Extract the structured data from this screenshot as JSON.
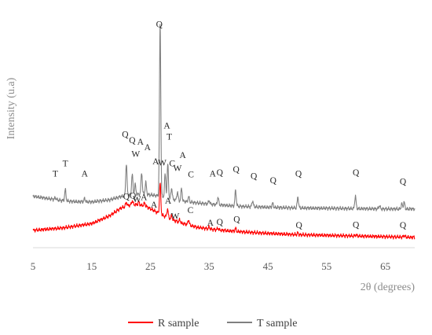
{
  "chart_data": {
    "type": "line",
    "xlabel": "2θ (degrees)",
    "ylabel": "Intensity (u.a)",
    "xlim": [
      5,
      70
    ],
    "x_ticks": [
      5,
      15,
      25,
      35,
      45,
      55,
      65
    ],
    "y_ticks_shown": false,
    "grid": false,
    "legend_position": "bottom",
    "series": [
      {
        "name": "R sample",
        "color": "#ff0000",
        "baseline": [
          [
            5,
            5.2
          ],
          [
            10,
            5.9
          ],
          [
            15,
            7.2
          ],
          [
            18,
            9.5
          ],
          [
            20,
            11.9
          ],
          [
            22,
            13.0
          ],
          [
            24,
            12.6
          ],
          [
            25.5,
            11.2
          ],
          [
            27,
            9.7
          ],
          [
            30,
            7.5
          ],
          [
            33,
            6.1
          ],
          [
            36,
            5.4
          ],
          [
            40,
            4.8
          ],
          [
            45,
            4.3
          ],
          [
            50,
            3.9
          ],
          [
            55,
            3.7
          ],
          [
            60,
            3.5
          ],
          [
            65,
            3.3
          ],
          [
            70,
            3.1
          ]
        ],
        "peaks": [
          [
            20.9,
            1.3
          ],
          [
            21.9,
            1.1
          ],
          [
            23.0,
            0.9
          ],
          [
            24.0,
            0.8
          ],
          [
            26.65,
            9.2
          ],
          [
            27.9,
            2.6
          ],
          [
            28.6,
            1.0
          ],
          [
            30.0,
            0.9
          ],
          [
            31.5,
            1.6
          ],
          [
            35.0,
            0.5
          ],
          [
            36.5,
            0.5
          ],
          [
            39.5,
            0.9
          ],
          [
            50.1,
            0.5
          ],
          [
            60.0,
            0.4
          ],
          [
            68.2,
            0.5
          ]
        ]
      },
      {
        "name": "T sample",
        "color": "#808080",
        "baseline": [
          [
            5,
            15.4
          ],
          [
            8,
            14.6
          ],
          [
            10,
            14.1
          ],
          [
            12,
            13.8
          ],
          [
            15,
            13.7
          ],
          [
            18,
            14.3
          ],
          [
            20,
            15.3
          ],
          [
            22,
            15.9
          ],
          [
            24,
            16.0
          ],
          [
            26,
            15.6
          ],
          [
            28,
            14.7
          ],
          [
            30,
            14.0
          ],
          [
            33,
            13.4
          ],
          [
            36,
            12.9
          ],
          [
            40,
            12.4
          ],
          [
            45,
            12.1
          ],
          [
            50,
            11.9
          ],
          [
            55,
            11.8
          ],
          [
            60,
            11.7
          ],
          [
            65,
            11.6
          ],
          [
            70,
            11.6
          ]
        ],
        "peaks": [
          [
            8.8,
            0.6
          ],
          [
            10.5,
            3.3
          ],
          [
            13.8,
            1.0
          ],
          [
            20.9,
            9.6
          ],
          [
            21.9,
            6.1
          ],
          [
            22.4,
            3.0
          ],
          [
            23.5,
            6.5
          ],
          [
            24.2,
            3.6
          ],
          [
            26.65,
            51.5
          ],
          [
            27.5,
            7.0
          ],
          [
            27.95,
            10.2
          ],
          [
            28.6,
            3.4
          ],
          [
            29.6,
            2.6
          ],
          [
            30.3,
            3.7
          ],
          [
            31.5,
            1.6
          ],
          [
            35.0,
            1.1
          ],
          [
            36.5,
            2.3
          ],
          [
            39.5,
            4.7
          ],
          [
            42.4,
            1.8
          ],
          [
            45.8,
            1.2
          ],
          [
            50.1,
            3.3
          ],
          [
            59.9,
            3.8
          ],
          [
            64.0,
            1.0
          ],
          [
            67.8,
            1.6
          ],
          [
            68.2,
            2.1
          ]
        ]
      }
    ],
    "annotations": [
      {
        "text": "Q",
        "x": 26.5,
        "y": 66.0
      },
      {
        "text": "A",
        "x": 27.8,
        "y": 35.6
      },
      {
        "text": "T",
        "x": 28.2,
        "y": 32.3
      },
      {
        "text": "Q",
        "x": 20.7,
        "y": 33.1
      },
      {
        "text": "Q",
        "x": 21.9,
        "y": 31.3
      },
      {
        "text": "A",
        "x": 23.3,
        "y": 30.8
      },
      {
        "text": "A",
        "x": 24.5,
        "y": 29.2
      },
      {
        "text": "W",
        "x": 22.5,
        "y": 27.2
      },
      {
        "text": "A",
        "x": 25.9,
        "y": 24.9
      },
      {
        "text": "W",
        "x": 27.0,
        "y": 24.6
      },
      {
        "text": "C",
        "x": 28.7,
        "y": 24.3
      },
      {
        "text": "W",
        "x": 29.6,
        "y": 23.0
      },
      {
        "text": "A",
        "x": 30.5,
        "y": 26.8
      },
      {
        "text": "C",
        "x": 31.9,
        "y": 21.1
      },
      {
        "text": "T",
        "x": 8.8,
        "y": 21.3
      },
      {
        "text": "T",
        "x": 10.5,
        "y": 24.3
      },
      {
        "text": "A",
        "x": 13.8,
        "y": 21.3
      },
      {
        "text": "A",
        "x": 35.6,
        "y": 21.3
      },
      {
        "text": "Q",
        "x": 36.8,
        "y": 21.7
      },
      {
        "text": "Q",
        "x": 39.6,
        "y": 22.6
      },
      {
        "text": "Q",
        "x": 42.6,
        "y": 20.6
      },
      {
        "text": "Q",
        "x": 45.9,
        "y": 19.3
      },
      {
        "text": "Q",
        "x": 50.2,
        "y": 21.3
      },
      {
        "text": "Q",
        "x": 60.0,
        "y": 21.7
      },
      {
        "text": "Q",
        "x": 68.0,
        "y": 19.0
      },
      {
        "text": "Q",
        "x": 20.9,
        "y": 14.5
      },
      {
        "text": "Q",
        "x": 22.0,
        "y": 14.7
      },
      {
        "text": "W",
        "x": 22.7,
        "y": 13.7
      },
      {
        "text": "A",
        "x": 23.9,
        "y": 14.2
      },
      {
        "text": "A",
        "x": 25.6,
        "y": 12.0
      },
      {
        "text": "A",
        "x": 28.0,
        "y": 13.2
      },
      {
        "text": "W",
        "x": 29.2,
        "y": 8.6
      },
      {
        "text": "C",
        "x": 31.8,
        "y": 10.3
      },
      {
        "text": "A",
        "x": 35.2,
        "y": 6.6
      },
      {
        "text": "Q",
        "x": 36.8,
        "y": 6.8
      },
      {
        "text": "Q",
        "x": 39.7,
        "y": 7.6
      },
      {
        "text": "Q",
        "x": 50.3,
        "y": 5.9
      },
      {
        "text": "Q",
        "x": 60.0,
        "y": 6.0
      },
      {
        "text": "Q",
        "x": 68.0,
        "y": 5.9
      }
    ]
  }
}
